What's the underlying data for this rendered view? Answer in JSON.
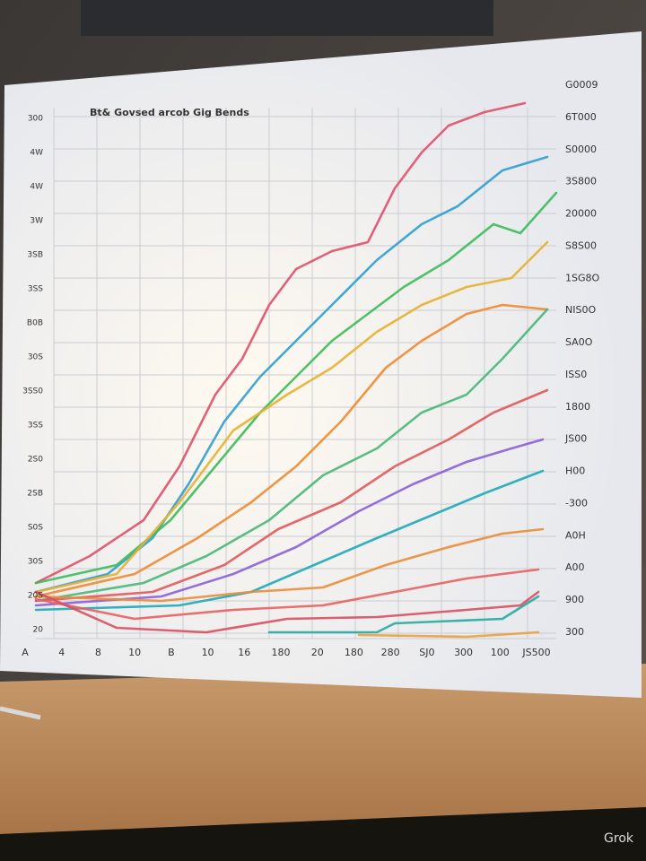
{
  "board": {
    "title": "Bt& Govsed arcob Gig Bends",
    "left_labels": [
      "300",
      "4W",
      "4W",
      "3W",
      "3SB",
      "3SS",
      "B0B",
      "30S",
      "3SS0",
      "3SS",
      "2S0",
      "2SB",
      "S0S",
      "30S",
      "20S",
      "20"
    ],
    "right_labels": [
      "G0009",
      "6T000",
      "S0000",
      "3S800",
      "20000",
      "S8S00",
      "1SG8O",
      "NIS0O",
      "SA0O",
      "ISS0",
      "1800",
      "JS00",
      "H00",
      "-300",
      "A0H",
      "A00",
      "900",
      "300"
    ],
    "bottom_labels": [
      "A",
      "4",
      "8",
      "10",
      "B",
      "10",
      "16",
      "180",
      "20",
      "180",
      "280",
      "SJ0",
      "300",
      "100",
      "JS500"
    ]
  },
  "watermark": "Grok"
}
